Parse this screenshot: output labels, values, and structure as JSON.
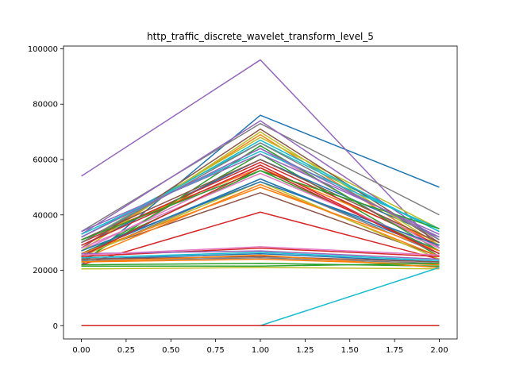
{
  "chart_data": {
    "type": "line",
    "title": "http_traffic_discrete_wavelet_transform_level_5",
    "xlabel": "",
    "ylabel": "",
    "x": [
      0,
      1,
      2
    ],
    "xlim": [
      -0.1,
      2.1
    ],
    "ylim": [
      -4800,
      101000
    ],
    "x_ticks": [
      0.0,
      0.25,
      0.5,
      0.75,
      1.0,
      1.25,
      1.5,
      1.75,
      2.0
    ],
    "x_tick_labels": [
      "0.00",
      "0.25",
      "0.50",
      "0.75",
      "1.00",
      "1.25",
      "1.50",
      "1.75",
      "2.00"
    ],
    "y_ticks": [
      0,
      20000,
      40000,
      60000,
      80000,
      100000
    ],
    "y_tick_labels": [
      "0",
      "20000",
      "40000",
      "60000",
      "80000",
      "100000"
    ],
    "grid": false,
    "legend": "none",
    "series": [
      {
        "color": "#1f77b4",
        "values": [
          22000,
          76000,
          50000
        ]
      },
      {
        "color": "#ff7f0e",
        "values": [
          28000,
          69000,
          28000
        ]
      },
      {
        "color": "#2ca02c",
        "values": [
          25000,
          62000,
          25000
        ]
      },
      {
        "color": "#d62728",
        "values": [
          22000,
          41000,
          24000
        ]
      },
      {
        "color": "#9467bd",
        "values": [
          54000,
          96000,
          28000
        ]
      },
      {
        "color": "#8c564b",
        "values": [
          26000,
          48000,
          25000
        ]
      },
      {
        "color": "#e377c2",
        "values": [
          27000,
          58000,
          26000
        ]
      },
      {
        "color": "#7f7f7f",
        "values": [
          34000,
          73000,
          40000
        ]
      },
      {
        "color": "#bcbd22",
        "values": [
          30000,
          68000,
          35000
        ]
      },
      {
        "color": "#17becf",
        "values": [
          32000,
          66000,
          34000
        ]
      },
      {
        "color": "#1f77b4",
        "values": [
          29000,
          60000,
          32000
        ]
      },
      {
        "color": "#ff7f0e",
        "values": [
          31000,
          57000,
          30000
        ]
      },
      {
        "color": "#2ca02c",
        "values": [
          26000,
          56000,
          27000
        ]
      },
      {
        "color": "#d62728",
        "values": [
          30000,
          59000,
          29000
        ]
      },
      {
        "color": "#9467bd",
        "values": [
          33000,
          74000,
          31000
        ]
      },
      {
        "color": "#8c564b",
        "values": [
          28000,
          71000,
          30000
        ]
      },
      {
        "color": "#e377c2",
        "values": [
          32000,
          64000,
          28000
        ]
      },
      {
        "color": "#7f7f7f",
        "values": [
          25000,
          53000,
          26000
        ]
      },
      {
        "color": "#bcbd22",
        "values": [
          27000,
          70000,
          29000
        ]
      },
      {
        "color": "#17becf",
        "values": [
          30000,
          67000,
          34000
        ]
      },
      {
        "color": "#1f77b4",
        "values": [
          26000,
          53000,
          27000
        ]
      },
      {
        "color": "#ff7f0e",
        "values": [
          24000,
          51000,
          25000
        ]
      },
      {
        "color": "#2ca02c",
        "values": [
          23000,
          65000,
          27000
        ]
      },
      {
        "color": "#d62728",
        "values": [
          29000,
          58000,
          26000
        ]
      },
      {
        "color": "#9467bd",
        "values": [
          34000,
          62000,
          33000
        ]
      },
      {
        "color": "#8c564b",
        "values": [
          31000,
          60000,
          30000
        ]
      },
      {
        "color": "#e377c2",
        "values": [
          28000,
          55000,
          28000
        ]
      },
      {
        "color": "#7f7f7f",
        "values": [
          30000,
          66000,
          31000
        ]
      },
      {
        "color": "#bcbd22",
        "values": [
          25000,
          52000,
          24000
        ]
      },
      {
        "color": "#17becf",
        "values": [
          33000,
          63000,
          35000
        ]
      },
      {
        "color": "#1f77b4",
        "values": [
          27000,
          52000,
          29000
        ]
      },
      {
        "color": "#ff7f0e",
        "values": [
          26000,
          50000,
          27000
        ]
      },
      {
        "color": "#2ca02c",
        "values": [
          31000,
          56000,
          35000
        ]
      },
      {
        "color": "#d62728",
        "values": [
          25000,
          57000,
          26000
        ]
      },
      {
        "color": "#9467bd",
        "values": [
          32000,
          64000,
          32000
        ]
      },
      {
        "color": "#1f77b4",
        "values": [
          24000,
          26000,
          23000
        ]
      },
      {
        "color": "#ff7f0e",
        "values": [
          23000,
          24000,
          22000
        ]
      },
      {
        "color": "#2ca02c",
        "values": [
          22000,
          22500,
          21500
        ]
      },
      {
        "color": "#d62728",
        "values": [
          25000,
          28000,
          25000
        ]
      },
      {
        "color": "#9467bd",
        "values": [
          26000,
          27000,
          24000
        ]
      },
      {
        "color": "#8c564b",
        "values": [
          24000,
          25000,
          23000
        ]
      },
      {
        "color": "#e377c2",
        "values": [
          25500,
          28500,
          25500
        ]
      },
      {
        "color": "#7f7f7f",
        "values": [
          23500,
          24500,
          22500
        ]
      },
      {
        "color": "#bcbd22",
        "values": [
          20500,
          21000,
          20500
        ]
      },
      {
        "color": "#17becf",
        "values": [
          24500,
          26500,
          23500
        ]
      },
      {
        "color": "#ff7f0e",
        "values": [
          23000,
          25500,
          21000
        ]
      },
      {
        "color": "#2ca02c",
        "values": [
          21500,
          21500,
          22500
        ]
      },
      {
        "color": "#17becf",
        "values": [
          0,
          0,
          21000
        ]
      },
      {
        "color": "#1f77b4",
        "values": [
          0,
          0,
          0
        ]
      },
      {
        "color": "#d62728",
        "values": [
          0,
          0,
          0
        ]
      }
    ]
  }
}
